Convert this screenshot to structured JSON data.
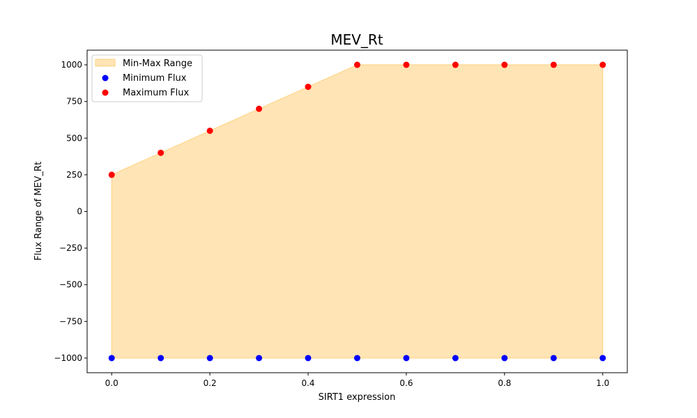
{
  "chart_data": {
    "type": "scatter",
    "title": "MEV_Rt",
    "xlabel": "SIRT1 expression",
    "ylabel": "Flux Range of MEV_Rt",
    "x": [
      0.0,
      0.1,
      0.2,
      0.3,
      0.4,
      0.5,
      0.6,
      0.7,
      0.8,
      0.9,
      1.0
    ],
    "series": [
      {
        "name": "Minimum Flux",
        "color": "#0000ff",
        "values": [
          -1000,
          -1000,
          -1000,
          -1000,
          -1000,
          -1000,
          -1000,
          -1000,
          -1000,
          -1000,
          -1000
        ]
      },
      {
        "name": "Maximum Flux",
        "color": "#ff0000",
        "values": [
          250,
          400,
          550,
          700,
          850,
          1000,
          1000,
          1000,
          1000,
          1000,
          1000
        ]
      }
    ],
    "fill": {
      "name": "Min-Max Range",
      "color": "#ffe4b5",
      "edge_color": "#ffd27f"
    },
    "xlim": [
      -0.05,
      1.05
    ],
    "ylim": [
      -1100,
      1100
    ],
    "xticks": [
      "0.0",
      "0.2",
      "0.4",
      "0.6",
      "0.8",
      "1.0"
    ],
    "xtick_values": [
      0.0,
      0.2,
      0.4,
      0.6,
      0.8,
      1.0
    ],
    "yticks": [
      "−1000",
      "−750",
      "−500",
      "−250",
      "0",
      "250",
      "500",
      "750",
      "1000"
    ],
    "ytick_values": [
      -1000,
      -750,
      -500,
      -250,
      0,
      250,
      500,
      750,
      1000
    ],
    "grid": false,
    "legend_position": "top-left"
  }
}
